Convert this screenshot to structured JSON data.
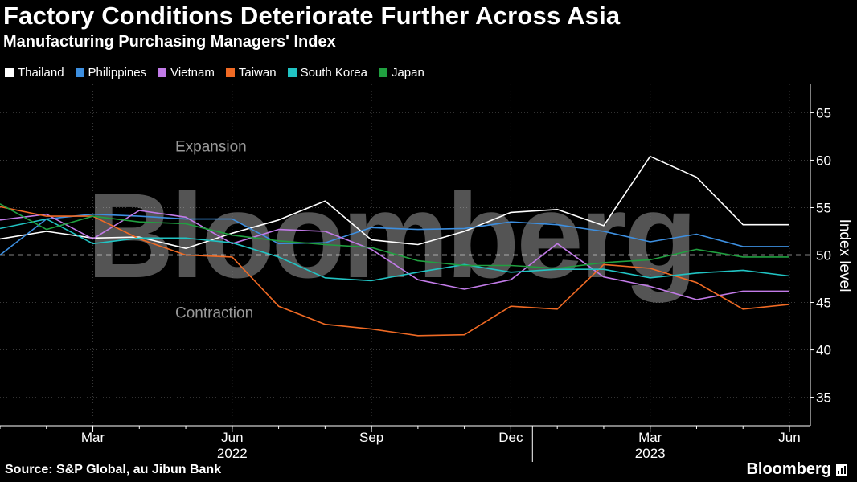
{
  "header": {
    "title": "Factory Conditions Deteriorate Further Across Asia",
    "subtitle": "Manufacturing Purchasing Managers' Index"
  },
  "footer": {
    "source": "Source: S&P Global, au Jibun Bank",
    "brand": "Bloomberg"
  },
  "watermark": "Bloomberg",
  "colors": {
    "background": "#000000",
    "Thailand": "#ffffff",
    "Philippines": "#3d8fe0",
    "Vietnam": "#c27be8",
    "Taiwan": "#f06a24",
    "South Korea": "#21c3c3",
    "Japan": "#20a040"
  },
  "chart_data": {
    "type": "line",
    "title": "Factory Conditions Deteriorate Further Across Asia",
    "subtitle": "Manufacturing Purchasing Managers' Index",
    "ylabel": "Index level",
    "ylim": [
      32,
      68
    ],
    "yticks": [
      35,
      40,
      45,
      50,
      55,
      60,
      65
    ],
    "x": [
      "2022-01",
      "2022-02",
      "2022-03",
      "2022-04",
      "2022-05",
      "2022-06",
      "2022-07",
      "2022-08",
      "2022-09",
      "2022-10",
      "2022-11",
      "2022-12",
      "2023-01",
      "2023-02",
      "2023-03",
      "2023-04",
      "2023-05",
      "2023-06"
    ],
    "xticks": [
      {
        "label": "Mar",
        "x": "2022-03"
      },
      {
        "label": "Jun",
        "x": "2022-06"
      },
      {
        "label": "Sep",
        "x": "2022-09"
      },
      {
        "label": "Dec",
        "x": "2022-12"
      },
      {
        "label": "Mar",
        "x": "2023-03"
      },
      {
        "label": "Jun",
        "x": "2023-06"
      }
    ],
    "years": [
      {
        "label": "2022",
        "x": "2022-06"
      },
      {
        "label": "2023",
        "x": "2023-03"
      }
    ],
    "reference_line": 50,
    "annotations": [
      {
        "text": "Expansion",
        "y": 61.5
      },
      {
        "text": "Contraction",
        "y": 44.0
      }
    ],
    "legend_position": "top-left",
    "series": [
      {
        "name": "Thailand",
        "values": [
          51.7,
          52.5,
          51.8,
          51.9,
          50.7,
          52.3,
          53.7,
          55.7,
          51.6,
          51.1,
          52.5,
          54.5,
          54.8,
          53.1,
          60.4,
          58.2,
          53.2,
          53.2
        ]
      },
      {
        "name": "Philippines",
        "values": [
          50.0,
          53.8,
          54.3,
          54.1,
          53.8,
          53.8,
          51.2,
          51.3,
          52.9,
          52.7,
          52.8,
          53.5,
          53.2,
          52.5,
          51.4,
          52.2,
          50.9,
          50.9
        ]
      },
      {
        "name": "Vietnam",
        "values": [
          53.7,
          54.3,
          51.7,
          54.7,
          54.0,
          51.2,
          52.7,
          52.5,
          50.6,
          47.4,
          46.4,
          47.4,
          51.2,
          47.7,
          46.7,
          45.3,
          46.2,
          46.2
        ]
      },
      {
        "name": "Taiwan",
        "values": [
          55.1,
          54.1,
          54.1,
          51.7,
          50.0,
          49.8,
          44.6,
          42.7,
          42.2,
          41.5,
          41.6,
          44.6,
          44.3,
          49.0,
          48.6,
          47.1,
          44.3,
          44.8
        ]
      },
      {
        "name": "South Korea",
        "values": [
          52.8,
          53.8,
          51.2,
          51.8,
          51.8,
          51.3,
          49.8,
          47.6,
          47.3,
          48.2,
          49.0,
          48.2,
          48.5,
          48.5,
          47.6,
          48.1,
          48.4,
          47.8
        ]
      },
      {
        "name": "Japan",
        "values": [
          55.4,
          52.7,
          54.1,
          53.5,
          53.3,
          52.1,
          51.5,
          51.1,
          50.8,
          49.4,
          48.9,
          48.9,
          48.6,
          49.2,
          49.5,
          50.6,
          49.8,
          49.8
        ]
      }
    ]
  }
}
